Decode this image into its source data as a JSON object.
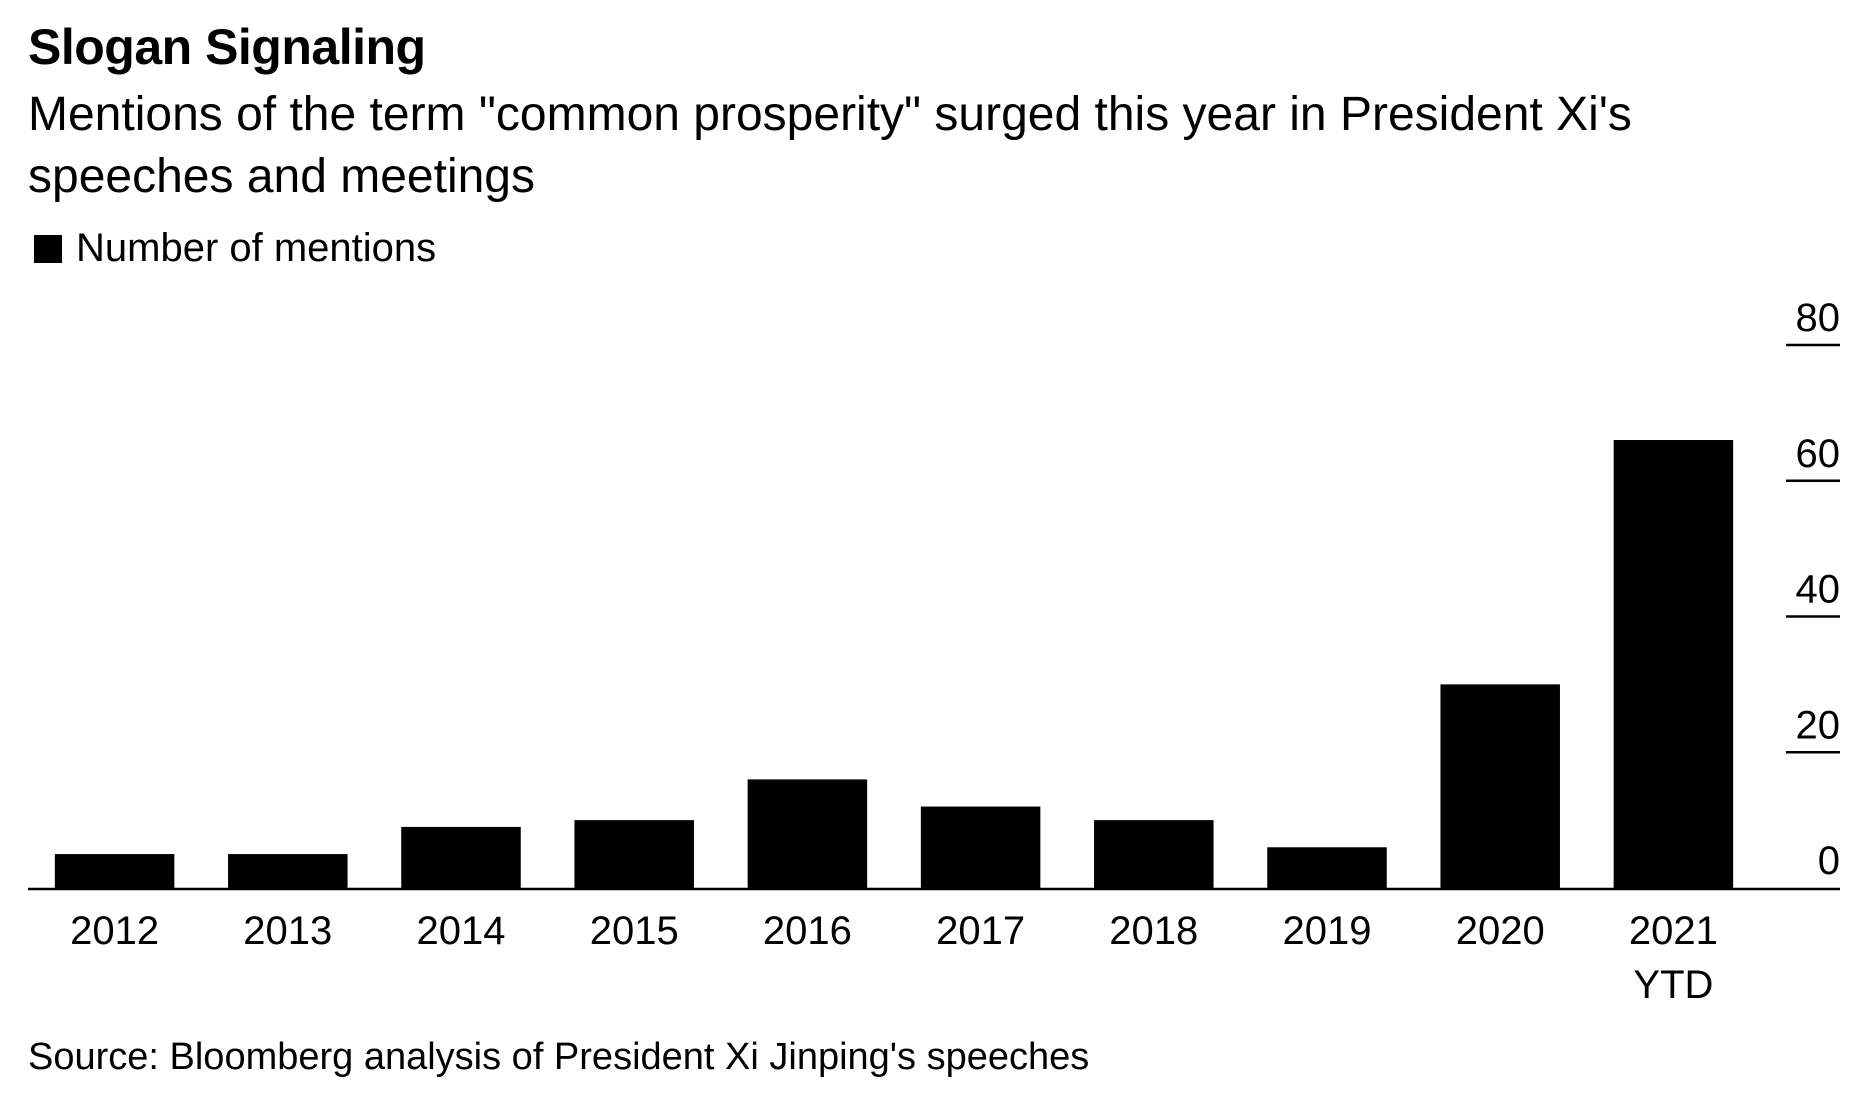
{
  "chart_data": {
    "type": "bar",
    "title": "Slogan Signaling",
    "subtitle": "Mentions of the term \"common prosperity\" surged this year in President Xi's speeches and meetings",
    "legend": [
      "Number of mentions"
    ],
    "legend_position": "top-left",
    "categories": [
      "2012",
      "2013",
      "2014",
      "2015",
      "2016",
      "2017",
      "2018",
      "2019",
      "2020",
      "2021 YTD"
    ],
    "category_lines": [
      [
        "2012"
      ],
      [
        "2013"
      ],
      [
        "2014"
      ],
      [
        "2015"
      ],
      [
        "2016"
      ],
      [
        "2017"
      ],
      [
        "2018"
      ],
      [
        "2019"
      ],
      [
        "2020"
      ],
      [
        "2021",
        "YTD"
      ]
    ],
    "series": [
      {
        "name": "Number of mentions",
        "values": [
          5,
          5,
          9,
          10,
          16,
          12,
          10,
          6,
          30,
          66
        ]
      }
    ],
    "yticks": [
      0,
      20,
      40,
      60,
      80
    ],
    "ylim": [
      0,
      80
    ],
    "y_axis_side": "right",
    "grid": false,
    "bar_color": "#000000",
    "source": "Source: Bloomberg analysis of President Xi Jinping's speeches"
  }
}
